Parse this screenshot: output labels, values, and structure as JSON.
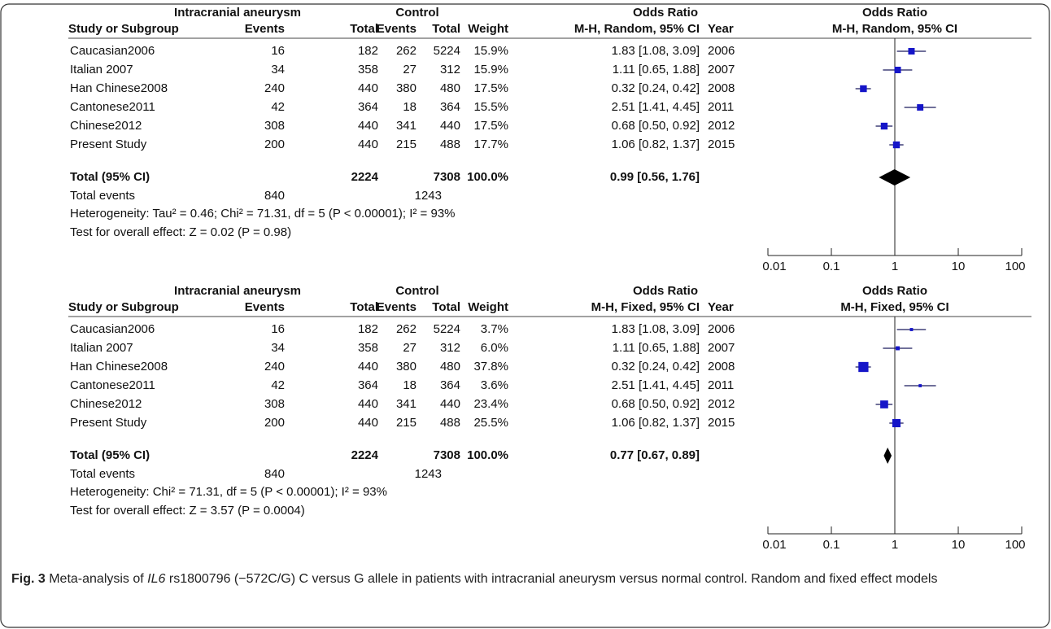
{
  "panels": [
    {
      "header": {
        "group1": "Intracranial aneurysm",
        "group2": "Control",
        "or_title": "Odds Ratio",
        "plot_title": "Odds Ratio",
        "columns": [
          "Study or Subgroup",
          "Events",
          "Total",
          "Events",
          "Total",
          "Weight",
          "M-H, Random, 95% CI",
          "Year"
        ],
        "plot_method": "M-H, Random, 95% CI"
      },
      "studies": [
        {
          "name": "Caucasian2006",
          "e1": 16,
          "t1": 182,
          "e2": 262,
          "t2": 5224,
          "weight": 15.9,
          "weight_label": "15.9%",
          "or": 1.83,
          "ci": [
            1.08,
            3.09
          ],
          "or_label": "1.83 [1.08, 3.09]",
          "year": 2006
        },
        {
          "name": "Italian 2007",
          "e1": 34,
          "t1": 358,
          "e2": 27,
          "t2": 312,
          "weight": 15.9,
          "weight_label": "15.9%",
          "or": 1.11,
          "ci": [
            0.65,
            1.88
          ],
          "or_label": "1.11 [0.65, 1.88]",
          "year": 2007
        },
        {
          "name": "Han Chinese2008",
          "e1": 240,
          "t1": 440,
          "e2": 380,
          "t2": 480,
          "weight": 17.5,
          "weight_label": "17.5%",
          "or": 0.32,
          "ci": [
            0.24,
            0.42
          ],
          "or_label": "0.32 [0.24, 0.42]",
          "year": 2008
        },
        {
          "name": "Cantonese2011",
          "e1": 42,
          "t1": 364,
          "e2": 18,
          "t2": 364,
          "weight": 15.5,
          "weight_label": "15.5%",
          "or": 2.51,
          "ci": [
            1.41,
            4.45
          ],
          "or_label": "2.51 [1.41, 4.45]",
          "year": 2011
        },
        {
          "name": "Chinese2012",
          "e1": 308,
          "t1": 440,
          "e2": 341,
          "t2": 440,
          "weight": 17.5,
          "weight_label": "17.5%",
          "or": 0.68,
          "ci": [
            0.5,
            0.92
          ],
          "or_label": "0.68 [0.50, 0.92]",
          "year": 2012
        },
        {
          "name": "Present Study",
          "e1": 200,
          "t1": 440,
          "e2": 215,
          "t2": 488,
          "weight": 17.7,
          "weight_label": "17.7%",
          "or": 1.06,
          "ci": [
            0.82,
            1.37
          ],
          "or_label": "1.06 [0.82, 1.37]",
          "year": 2015
        }
      ],
      "total": {
        "label": "Total (95% CI)",
        "t1": 2224,
        "t2": 7308,
        "weight_label": "100.0%",
        "or": 0.99,
        "ci": [
          0.56,
          1.76
        ],
        "or_label": "0.99 [0.56, 1.76]"
      },
      "total_events": {
        "label": "Total events",
        "e1": 840,
        "e2": 1243
      },
      "heterogeneity": "Heterogeneity: Tau² = 0.46; Chi² = 71.31, df = 5 (P < 0.00001); I² = 93%",
      "overall": "Test for overall effect: Z = 0.02 (P = 0.98)",
      "axis": {
        "log": true,
        "xlim": [
          0.01,
          100
        ],
        "xticks": [
          0.01,
          0.1,
          1,
          10,
          100
        ]
      }
    },
    {
      "header": {
        "group1": "Intracranial aneurysm",
        "group2": "Control",
        "or_title": "Odds Ratio",
        "plot_title": "Odds Ratio",
        "columns": [
          "Study or Subgroup",
          "Events",
          "Total",
          "Events",
          "Total",
          "Weight",
          "M-H, Fixed, 95% CI",
          "Year"
        ],
        "plot_method": "M-H, Fixed, 95% CI"
      },
      "studies": [
        {
          "name": "Caucasian2006",
          "e1": 16,
          "t1": 182,
          "e2": 262,
          "t2": 5224,
          "weight": 3.7,
          "weight_label": "3.7%",
          "or": 1.83,
          "ci": [
            1.08,
            3.09
          ],
          "or_label": "1.83 [1.08, 3.09]",
          "year": 2006
        },
        {
          "name": "Italian 2007",
          "e1": 34,
          "t1": 358,
          "e2": 27,
          "t2": 312,
          "weight": 6.0,
          "weight_label": "6.0%",
          "or": 1.11,
          "ci": [
            0.65,
            1.88
          ],
          "or_label": "1.11 [0.65, 1.88]",
          "year": 2007
        },
        {
          "name": "Han Chinese2008",
          "e1": 240,
          "t1": 440,
          "e2": 380,
          "t2": 480,
          "weight": 37.8,
          "weight_label": "37.8%",
          "or": 0.32,
          "ci": [
            0.24,
            0.42
          ],
          "or_label": "0.32 [0.24, 0.42]",
          "year": 2008
        },
        {
          "name": "Cantonese2011",
          "e1": 42,
          "t1": 364,
          "e2": 18,
          "t2": 364,
          "weight": 3.6,
          "weight_label": "3.6%",
          "or": 2.51,
          "ci": [
            1.41,
            4.45
          ],
          "or_label": "2.51 [1.41, 4.45]",
          "year": 2011
        },
        {
          "name": "Chinese2012",
          "e1": 308,
          "t1": 440,
          "e2": 341,
          "t2": 440,
          "weight": 23.4,
          "weight_label": "23.4%",
          "or": 0.68,
          "ci": [
            0.5,
            0.92
          ],
          "or_label": "0.68 [0.50, 0.92]",
          "year": 2012
        },
        {
          "name": "Present Study",
          "e1": 200,
          "t1": 440,
          "e2": 215,
          "t2": 488,
          "weight": 25.5,
          "weight_label": "25.5%",
          "or": 1.06,
          "ci": [
            0.82,
            1.37
          ],
          "or_label": "1.06 [0.82, 1.37]",
          "year": 2015
        }
      ],
      "total": {
        "label": "Total (95% CI)",
        "t1": 2224,
        "t2": 7308,
        "weight_label": "100.0%",
        "or": 0.77,
        "ci": [
          0.67,
          0.89
        ],
        "or_label": "0.77 [0.67, 0.89]"
      },
      "total_events": {
        "label": "Total events",
        "e1": 840,
        "e2": 1243
      },
      "heterogeneity": "Heterogeneity: Chi² = 71.31, df = 5 (P < 0.00001); I² = 93%",
      "overall": "Test for overall effect: Z = 3.57 (P = 0.0004)",
      "axis": {
        "log": true,
        "xlim": [
          0.01,
          100
        ],
        "xticks": [
          0.01,
          0.1,
          1,
          10,
          100
        ]
      }
    }
  ],
  "caption": {
    "label": "Fig. 3",
    "parts": [
      " Meta-analysis of ",
      "IL6",
      " rs1800796 (−572C/G) C versus G allele in patients with intracranial aneurysm versus normal control. Random and fixed effect models"
    ]
  }
}
